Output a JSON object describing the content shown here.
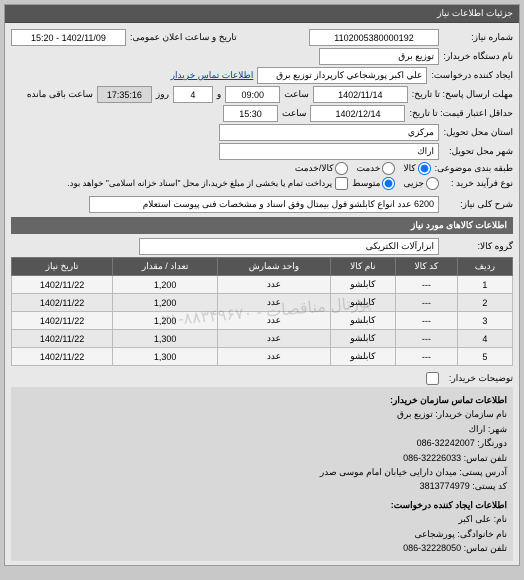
{
  "panel_title": "جزئیات اطلاعات نیاز",
  "request_no_label": "شماره نیاز:",
  "request_no": "1102005380000192",
  "announce_label": "تاریخ و ساعت اعلان عمومی:",
  "announce": "1402/11/09 - 15:20",
  "buyer_label": "نام دستگاه خریدار:",
  "buyer": "توزیع برق",
  "creator_label": "ایجاد کننده درخواست:",
  "creator": "علي اكبر پورشجاعي كارپرداز توزيع برق",
  "contact_link": "اطلاعات تماس خریدار",
  "deadline_label": "مهلت ارسال پاسخ: تا تاریخ:",
  "deadline_date": "1402/11/14",
  "deadline_time_label": "ساعت",
  "deadline_time": "09:00",
  "remain_label": "و",
  "remain_day_label": "روز",
  "remain_days": "4",
  "remain_time": "17:35:16",
  "remain_suffix": "ساعت باقی مانده",
  "validity_label": "حداقل اعتبار قیمت: تا تاریخ:",
  "validity_date": "1402/12/14",
  "validity_time": "15:30",
  "province_label": "استان محل تحویل:",
  "province": "مركزي",
  "city_label": "شهر محل تحویل:",
  "city": "اراك",
  "pack_label": "طبقه بندی موضوعی:",
  "pack_options": {
    "a": "کالا",
    "b": "خدمت",
    "c": "کالا/خدمت"
  },
  "process_label": "نوع فرآیند خرید :",
  "process_options": {
    "a": "جزیی",
    "b": "متوسط"
  },
  "process_note": "پرداخت تمام یا بخشی از مبلغ خرید،از محل \"اسناد خزانه اسلامی\" خواهد بود.",
  "desc_label": "شرح کلی نیاز:",
  "desc": "6200 عدد انواع کابلشو فول بیمتال وفق اسناد و مشخصات فنی پیوست استعلام",
  "section2_title": "اطلاعات کالاهای مورد نیاز",
  "group_label": "گروه کالا:",
  "group": "ابزارآلات الکتریکی",
  "table": {
    "headers": [
      "ردیف",
      "کد کالا",
      "نام کالا",
      "واحد شمارش",
      "تعداد / مقدار",
      "تاریخ نیاز"
    ],
    "rows": [
      [
        "1",
        "---",
        "كابلشو",
        "عدد",
        "1,200",
        "1402/11/22"
      ],
      [
        "2",
        "---",
        "كابلشو",
        "عدد",
        "1,200",
        "1402/11/22"
      ],
      [
        "3",
        "---",
        "كابلشو",
        "عدد",
        "1,200",
        "1402/11/22"
      ],
      [
        "4",
        "---",
        "كابلشو",
        "عدد",
        "1,300",
        "1402/11/22"
      ],
      [
        "5",
        "---",
        "كابلشو",
        "عدد",
        "1,300",
        "1402/11/22"
      ]
    ]
  },
  "watermark": "پورتال مناقصات - ۸۸۳۴۹۶۷۰-۰۲۱",
  "buyer_desc_label": "توضیحات خریدار:",
  "org_title": "اطلاعات تماس سازمان خریدار:",
  "org": {
    "name_lbl": "نام سازمان خریدار:",
    "name": "توزیع برق",
    "prov_lbl": "شهر:",
    "prov": "اراك",
    "bank_lbl": "دورنگار:",
    "bank": "32242007-086",
    "phone_lbl": "تلفن تماس:",
    "phone": "32226033-086",
    "addr_lbl": "آدرس پستی:",
    "addr": "میدان دارایی خیابان امام موسی صدر",
    "post_lbl": "کد پستی:",
    "post": "3813774979"
  },
  "req_title": "اطلاعات ایجاد کننده درخواست:",
  "req": {
    "name_lbl": "نام:",
    "name": "علی اکبر",
    "fam_lbl": "نام خانوادگی:",
    "fam": "پورشجاعی",
    "phone_lbl": "تلفن تماس:",
    "phone": "32228050-086"
  }
}
